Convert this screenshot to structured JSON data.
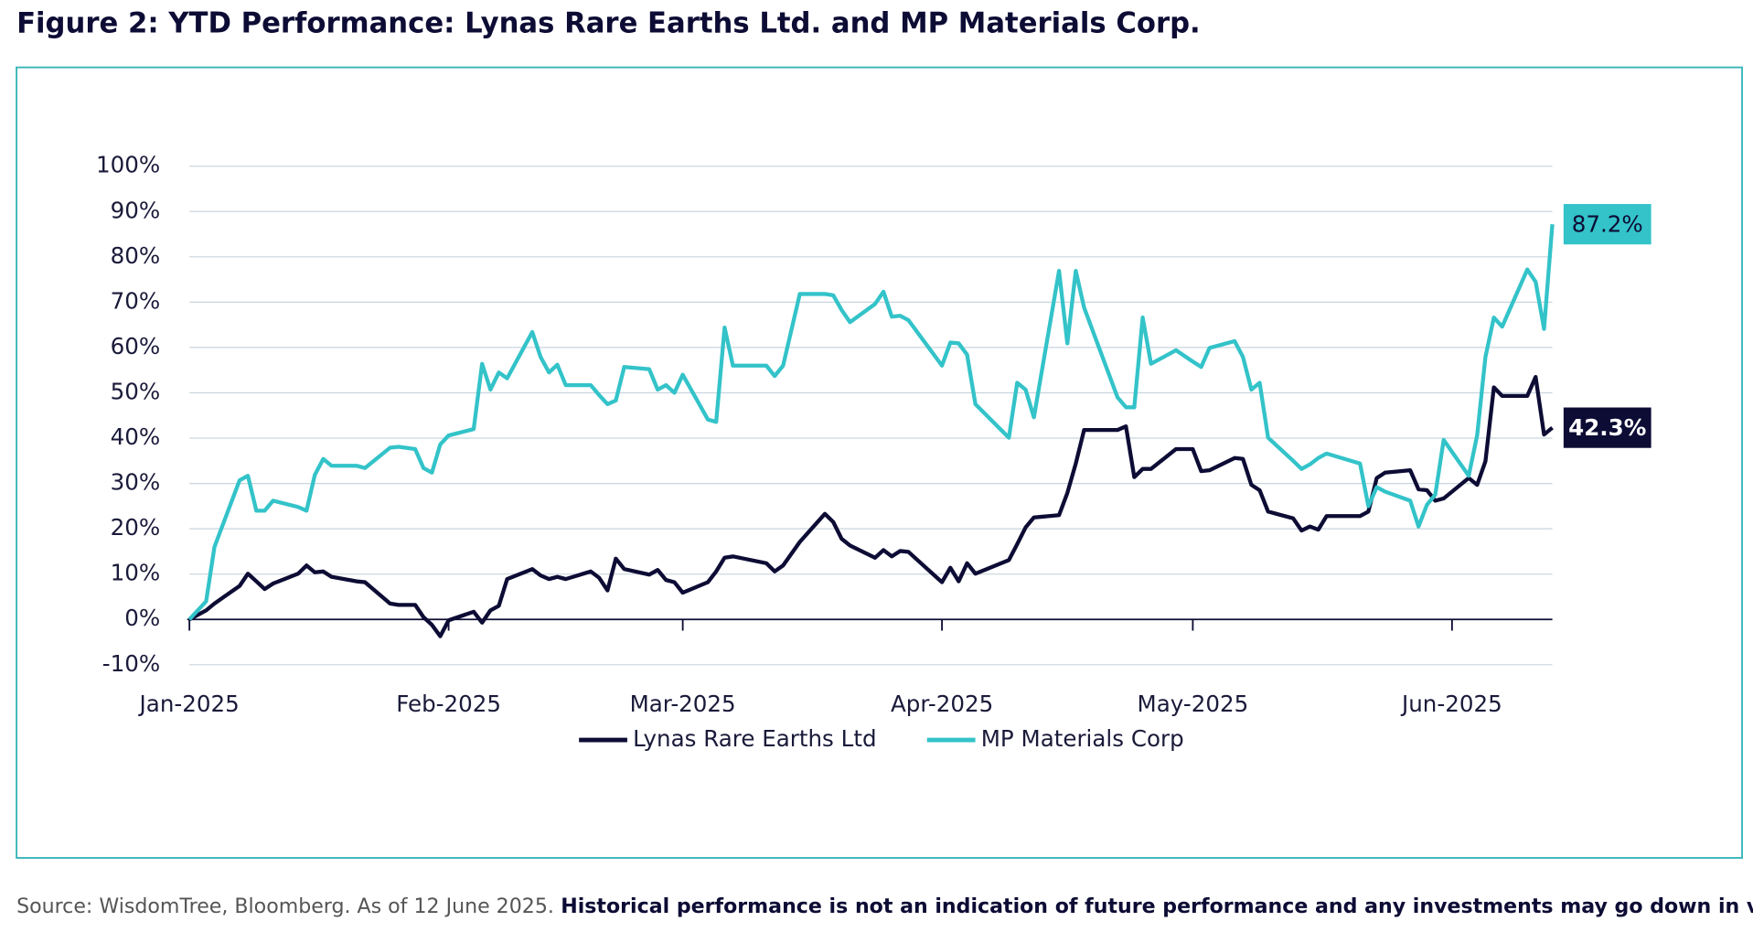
{
  "chart_data": {
    "type": "line",
    "title": "Figure 2: YTD Performance: Lynas Rare Earths Ltd. and MP Materials Corp.",
    "source": "Source: WisdomTree, Bloomberg. As of 12 June 2025.",
    "note": "Historical performance is not an indication of future performance and any investments may go down in value.",
    "xlim": [
      0,
      163
    ],
    "xticks": [
      {
        "value": 0,
        "label": "Jan-2025"
      },
      {
        "value": 31,
        "label": "Feb-2025"
      },
      {
        "value": 59,
        "label": "Mar-2025"
      },
      {
        "value": 90,
        "label": "Apr-2025"
      },
      {
        "value": 120,
        "label": "May-2025"
      },
      {
        "value": 151,
        "label": "Jun-2025"
      }
    ],
    "ylim": [
      -10,
      100
    ],
    "yticks": [
      {
        "value": -10,
        "label": "-10%"
      },
      {
        "value": 0,
        "label": "0%"
      },
      {
        "value": 10,
        "label": "10%"
      },
      {
        "value": 20,
        "label": "20%"
      },
      {
        "value": 30,
        "label": "30%"
      },
      {
        "value": 40,
        "label": "40%"
      },
      {
        "value": 50,
        "label": "50%"
      },
      {
        "value": 60,
        "label": "60%"
      },
      {
        "value": 70,
        "label": "70%"
      },
      {
        "value": 80,
        "label": "80%"
      },
      {
        "value": 90,
        "label": "90%"
      },
      {
        "value": 100,
        "label": "100%"
      }
    ],
    "grid": true,
    "legend": "bottom",
    "x": [
      0,
      2,
      3,
      6,
      7,
      8,
      9,
      10,
      13,
      14,
      15,
      16,
      17,
      20,
      21,
      24,
      25,
      27,
      28,
      29,
      30,
      31,
      34,
      35,
      36,
      37,
      38,
      41,
      42,
      43,
      44,
      45,
      48,
      49,
      50,
      51,
      52,
      55,
      56,
      57,
      58,
      59,
      62,
      63,
      64,
      65,
      69,
      70,
      71,
      73,
      76,
      77,
      78,
      79,
      82,
      83,
      84,
      85,
      86,
      90,
      91,
      92,
      93,
      94,
      98,
      99,
      100,
      101,
      104,
      105,
      106,
      107,
      111,
      112,
      113,
      114,
      115,
      118,
      120,
      121,
      122,
      125,
      126,
      127,
      128,
      129,
      132,
      133,
      134,
      135,
      136,
      140,
      141,
      142,
      143,
      146,
      147,
      148,
      149,
      150,
      153,
      154,
      155,
      156,
      157,
      160,
      161,
      162,
      163
    ],
    "series": [
      {
        "name": "Lynas Rare Earths Ltd",
        "color": "#0d0c35",
        "end_label": "42.3%",
        "end_label_text_color": "#ffffff",
        "values": [
          0,
          2,
          3.5,
          7.4,
          10.1,
          8.4,
          6.7,
          7.9,
          10.1,
          11.9,
          10.4,
          10.6,
          9.4,
          8.4,
          8.2,
          3.5,
          3.2,
          3.2,
          0.5,
          -1.2,
          -3.7,
          -0.2,
          1.7,
          -0.7,
          2,
          3,
          8.9,
          11.1,
          9.7,
          8.9,
          9.4,
          8.9,
          10.6,
          9.2,
          6.4,
          13.4,
          11.1,
          9.9,
          10.9,
          8.7,
          8.2,
          5.9,
          8.2,
          10.6,
          13.6,
          13.9,
          12.4,
          10.6,
          11.9,
          17.1,
          23.3,
          21.5,
          17.8,
          16.3,
          13.6,
          15.3,
          13.9,
          15.1,
          14.9,
          8.2,
          11.4,
          8.4,
          12.4,
          10.1,
          13.1,
          16.6,
          20.3,
          22.5,
          23,
          27.9,
          34.4,
          41.8,
          41.8,
          42.6,
          31.4,
          33.2,
          33.2,
          37.6,
          37.6,
          32.7,
          32.9,
          35.6,
          35.4,
          29.7,
          28.5,
          23.8,
          22.3,
          19.6,
          20.5,
          19.8,
          22.8,
          22.8,
          23.8,
          31.2,
          32.4,
          32.9,
          28.7,
          28.5,
          26.2,
          26.7,
          31.2,
          29.7,
          34.9,
          51.2,
          49.3,
          49.3,
          53.5,
          40.8,
          42.3
        ]
      },
      {
        "name": "MP Materials Corp",
        "color": "#33c3c9",
        "end_label": "87.2%",
        "end_label_text_color": "#0d0c35",
        "values": [
          0,
          4,
          16,
          30.7,
          31.7,
          24,
          24,
          26.2,
          24.8,
          24,
          31.9,
          35.4,
          33.9,
          33.9,
          33.4,
          37.9,
          38.1,
          37.6,
          33.4,
          32.4,
          38.6,
          40.6,
          42,
          56.4,
          50.7,
          54.5,
          53.2,
          63.4,
          57.9,
          54.5,
          56.2,
          51.7,
          51.7,
          49.5,
          47.5,
          48.3,
          55.7,
          55.2,
          50.7,
          51.7,
          50,
          54,
          44.1,
          43.6,
          64.4,
          56,
          56,
          53.7,
          56,
          71.8,
          71.8,
          71.5,
          68.3,
          65.6,
          69.6,
          72.3,
          66.8,
          67,
          66,
          56,
          61.1,
          60.9,
          58.4,
          47.5,
          40.1,
          52.2,
          50.7,
          44.6,
          76.9,
          60.9,
          76.9,
          68.8,
          49,
          46.8,
          46.8,
          66.6,
          56.4,
          59.4,
          56.9,
          55.7,
          59.9,
          61.4,
          57.9,
          50.7,
          52.2,
          40.1,
          35,
          33.2,
          34.2,
          35.6,
          36.6,
          34.4,
          25,
          29.2,
          28.2,
          26.2,
          20.5,
          25.3,
          27.5,
          39.6,
          31.7,
          40.6,
          57.9,
          66.6,
          64.6,
          77.2,
          74.5,
          64.1,
          87.2
        ]
      }
    ]
  }
}
